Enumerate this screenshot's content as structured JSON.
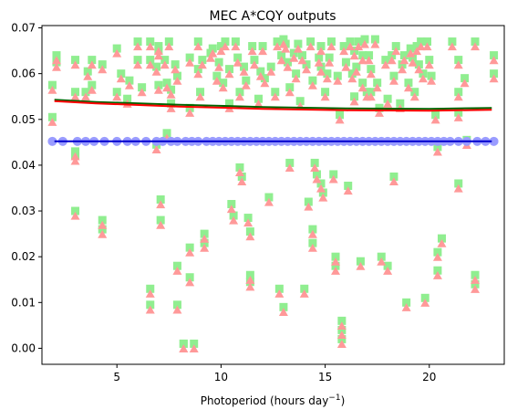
{
  "chart_data": {
    "type": "scatter",
    "title": "MEC A*CQY outputs",
    "xlabel": "Photoperiod (hours day",
    "xlabel_sup": "−1",
    "xlabel_tail": ")",
    "ylabel": "",
    "xlim": [
      1.4,
      23.6
    ],
    "ylim": [
      -0.0035,
      0.0705
    ],
    "xticks": [
      5,
      10,
      15,
      20
    ],
    "xtick_labels": [
      "5",
      "10",
      "15",
      "20"
    ],
    "yticks": [
      0.0,
      0.01,
      0.02,
      0.03,
      0.04,
      0.05,
      0.06,
      0.07
    ],
    "ytick_labels": [
      "0.00",
      "0.01",
      "0.02",
      "0.03",
      "0.04",
      "0.05",
      "0.06",
      "0.07"
    ],
    "grid": false,
    "colors": {
      "green_markers": "#90ee90",
      "pink_markers": "#ff9999",
      "blue_markers": "#9a9cff",
      "blue_line": "#0000cd",
      "red_line": "#ff0000",
      "green_line": "#006400"
    },
    "lines": [
      {
        "color": "#006400",
        "x": [
          2,
          4,
          8,
          12,
          16,
          20,
          23
        ],
        "y": [
          0.0543,
          0.0538,
          0.0532,
          0.0527,
          0.0524,
          0.0523,
          0.0525
        ]
      },
      {
        "color": "#ff0000",
        "x": [
          2,
          4,
          8,
          12,
          16,
          20,
          23
        ],
        "y": [
          0.054,
          0.0535,
          0.0528,
          0.0523,
          0.052,
          0.0519,
          0.0521
        ]
      },
      {
        "color": "#0000cd",
        "x": [
          2,
          23
        ],
        "y": [
          0.0452,
          0.0452
        ]
      }
    ],
    "constant_series_x": [
      1.9,
      2.4,
      3.1,
      3.5,
      3.9,
      4.4,
      5.0,
      5.5,
      5.9,
      6.4,
      6.9,
      7.2,
      7.6,
      7.9,
      8.3,
      8.6,
      8.9,
      9.3,
      9.6,
      9.9,
      10.2,
      10.5,
      10.8,
      11.1,
      11.4,
      11.7,
      12.0,
      12.3,
      12.6,
      12.9,
      13.2,
      13.5,
      13.8,
      14.1,
      14.4,
      14.7,
      15.0,
      15.3,
      15.6,
      15.9,
      16.2,
      16.5,
      16.8,
      17.1,
      17.4,
      17.7,
      18.0,
      18.3,
      18.6,
      18.9,
      19.2,
      19.5,
      19.8,
      20.1,
      20.4,
      20.7,
      21.0,
      21.4,
      21.8,
      22.3,
      22.7,
      23.1
    ],
    "constant_series_y": 0.0452,
    "scatter_pairs": [
      [
        1.9,
        0.057
      ],
      [
        1.9,
        0.05
      ],
      [
        2.1,
        0.0635
      ],
      [
        2.1,
        0.062
      ],
      [
        3.0,
        0.0625
      ],
      [
        3.0,
        0.0555
      ],
      [
        3.0,
        0.0425
      ],
      [
        3.0,
        0.0415
      ],
      [
        3.0,
        0.0295
      ],
      [
        3.5,
        0.0555
      ],
      [
        3.6,
        0.06
      ],
      [
        3.8,
        0.0625
      ],
      [
        3.8,
        0.057
      ],
      [
        4.3,
        0.0615
      ],
      [
        4.3,
        0.0275
      ],
      [
        4.3,
        0.0255
      ],
      [
        5.0,
        0.065
      ],
      [
        5.0,
        0.0555
      ],
      [
        5.2,
        0.0595
      ],
      [
        5.5,
        0.054
      ],
      [
        5.6,
        0.058
      ],
      [
        6.0,
        0.0665
      ],
      [
        6.0,
        0.0625
      ],
      [
        6.2,
        0.0565
      ],
      [
        6.6,
        0.0665
      ],
      [
        6.6,
        0.0625
      ],
      [
        6.6,
        0.0125
      ],
      [
        6.6,
        0.009
      ],
      [
        6.9,
        0.061
      ],
      [
        6.9,
        0.044
      ],
      [
        7.0,
        0.0655
      ],
      [
        7.0,
        0.0645
      ],
      [
        7.0,
        0.057
      ],
      [
        7.1,
        0.032
      ],
      [
        7.1,
        0.0275
      ],
      [
        7.3,
        0.0625
      ],
      [
        7.4,
        0.0575
      ],
      [
        7.4,
        0.0465
      ],
      [
        7.5,
        0.0665
      ],
      [
        7.6,
        0.056
      ],
      [
        7.6,
        0.053
      ],
      [
        7.8,
        0.0615
      ],
      [
        7.9,
        0.059
      ],
      [
        7.9,
        0.0175
      ],
      [
        7.9,
        0.009
      ],
      [
        8.2,
        0.0005
      ],
      [
        8.2,
        0.0005
      ],
      [
        8.5,
        0.063
      ],
      [
        8.5,
        0.052
      ],
      [
        8.5,
        0.0215
      ],
      [
        8.5,
        0.015
      ],
      [
        8.7,
        0.0005
      ],
      [
        8.9,
        0.0665
      ],
      [
        8.9,
        0.0605
      ],
      [
        9.0,
        0.0555
      ],
      [
        9.1,
        0.0625
      ],
      [
        9.2,
        0.0245
      ],
      [
        9.2,
        0.0225
      ],
      [
        9.5,
        0.064
      ],
      [
        9.6,
        0.065
      ],
      [
        9.8,
        0.059
      ],
      [
        9.9,
        0.062
      ],
      [
        10.0,
        0.0655
      ],
      [
        10.1,
        0.0575
      ],
      [
        10.2,
        0.0665
      ],
      [
        10.4,
        0.0605
      ],
      [
        10.4,
        0.053
      ],
      [
        10.5,
        0.031
      ],
      [
        10.6,
        0.0285
      ],
      [
        10.7,
        0.0665
      ],
      [
        10.8,
        0.063
      ],
      [
        10.9,
        0.0555
      ],
      [
        10.9,
        0.039
      ],
      [
        11.0,
        0.037
      ],
      [
        11.1,
        0.061
      ],
      [
        11.2,
        0.058
      ],
      [
        11.3,
        0.028
      ],
      [
        11.4,
        0.025
      ],
      [
        11.4,
        0.0155
      ],
      [
        11.4,
        0.014
      ],
      [
        11.5,
        0.0655
      ],
      [
        11.6,
        0.0625
      ],
      [
        11.8,
        0.054
      ],
      [
        11.9,
        0.06
      ],
      [
        12.0,
        0.0655
      ],
      [
        12.1,
        0.0585
      ],
      [
        12.3,
        0.0325
      ],
      [
        12.4,
        0.061
      ],
      [
        12.6,
        0.0555
      ],
      [
        12.7,
        0.0665
      ],
      [
        12.8,
        0.0125
      ],
      [
        12.9,
        0.0635
      ],
      [
        13.0,
        0.067
      ],
      [
        13.0,
        0.0085
      ],
      [
        13.1,
        0.066
      ],
      [
        13.2,
        0.062
      ],
      [
        13.3,
        0.0565
      ],
      [
        13.3,
        0.04
      ],
      [
        13.5,
        0.064
      ],
      [
        13.6,
        0.0595
      ],
      [
        13.7,
        0.066
      ],
      [
        13.8,
        0.0535
      ],
      [
        13.9,
        0.0635
      ],
      [
        14.0,
        0.0125
      ],
      [
        14.1,
        0.0615
      ],
      [
        14.2,
        0.0315
      ],
      [
        14.3,
        0.0665
      ],
      [
        14.4,
        0.058
      ],
      [
        14.4,
        0.0255
      ],
      [
        14.4,
        0.0225
      ],
      [
        14.5,
        0.04
      ],
      [
        14.6,
        0.0375
      ],
      [
        14.7,
        0.063
      ],
      [
        14.8,
        0.061
      ],
      [
        14.8,
        0.0655
      ],
      [
        14.8,
        0.0355
      ],
      [
        14.9,
        0.0335
      ],
      [
        15.0,
        0.0555
      ],
      [
        15.1,
        0.0595
      ],
      [
        15.2,
        0.063
      ],
      [
        15.3,
        0.0665
      ],
      [
        15.4,
        0.0375
      ],
      [
        15.5,
        0.0195
      ],
      [
        15.5,
        0.0175
      ],
      [
        15.6,
        0.059
      ],
      [
        15.7,
        0.0505
      ],
      [
        15.8,
        0.0055
      ],
      [
        15.8,
        0.0035
      ],
      [
        15.8,
        0.0015
      ],
      [
        15.9,
        0.0655
      ],
      [
        16.0,
        0.062
      ],
      [
        16.1,
        0.035
      ],
      [
        16.2,
        0.0665
      ],
      [
        16.3,
        0.0595
      ],
      [
        16.4,
        0.0645
      ],
      [
        16.4,
        0.0545
      ],
      [
        16.5,
        0.061
      ],
      [
        16.6,
        0.0665
      ],
      [
        16.7,
        0.0185
      ],
      [
        16.8,
        0.0635
      ],
      [
        16.8,
        0.0575
      ],
      [
        16.9,
        0.067
      ],
      [
        17.0,
        0.0555
      ],
      [
        17.1,
        0.0635
      ],
      [
        17.2,
        0.0605
      ],
      [
        17.2,
        0.0555
      ],
      [
        17.4,
        0.067
      ],
      [
        17.5,
        0.0575
      ],
      [
        17.6,
        0.052
      ],
      [
        17.7,
        0.0195
      ],
      [
        17.9,
        0.0625
      ],
      [
        18.0,
        0.0175
      ],
      [
        18.0,
        0.054
      ],
      [
        18.2,
        0.0635
      ],
      [
        18.3,
        0.059
      ],
      [
        18.3,
        0.037
      ],
      [
        18.4,
        0.0655
      ],
      [
        18.6,
        0.053
      ],
      [
        18.7,
        0.0615
      ],
      [
        18.8,
        0.0635
      ],
      [
        18.9,
        0.0095
      ],
      [
        19.0,
        0.0575
      ],
      [
        19.1,
        0.065
      ],
      [
        19.2,
        0.063
      ],
      [
        19.3,
        0.0555
      ],
      [
        19.4,
        0.0655
      ],
      [
        19.5,
        0.0615
      ],
      [
        19.6,
        0.0665
      ],
      [
        19.7,
        0.0595
      ],
      [
        19.8,
        0.0105
      ],
      [
        19.9,
        0.0665
      ],
      [
        20.0,
        0.0625
      ],
      [
        20.1,
        0.059
      ],
      [
        20.3,
        0.0505
      ],
      [
        20.4,
        0.0435
      ],
      [
        20.4,
        0.0205
      ],
      [
        20.4,
        0.0165
      ],
      [
        20.6,
        0.0235
      ],
      [
        21.1,
        0.0665
      ],
      [
        21.4,
        0.0625
      ],
      [
        21.4,
        0.0555
      ],
      [
        21.4,
        0.051
      ],
      [
        21.4,
        0.0355
      ],
      [
        21.7,
        0.0585
      ],
      [
        21.8,
        0.045
      ],
      [
        22.2,
        0.0665
      ],
      [
        22.2,
        0.0155
      ],
      [
        22.2,
        0.0135
      ],
      [
        23.1,
        0.0635
      ],
      [
        23.1,
        0.0595
      ]
    ]
  }
}
